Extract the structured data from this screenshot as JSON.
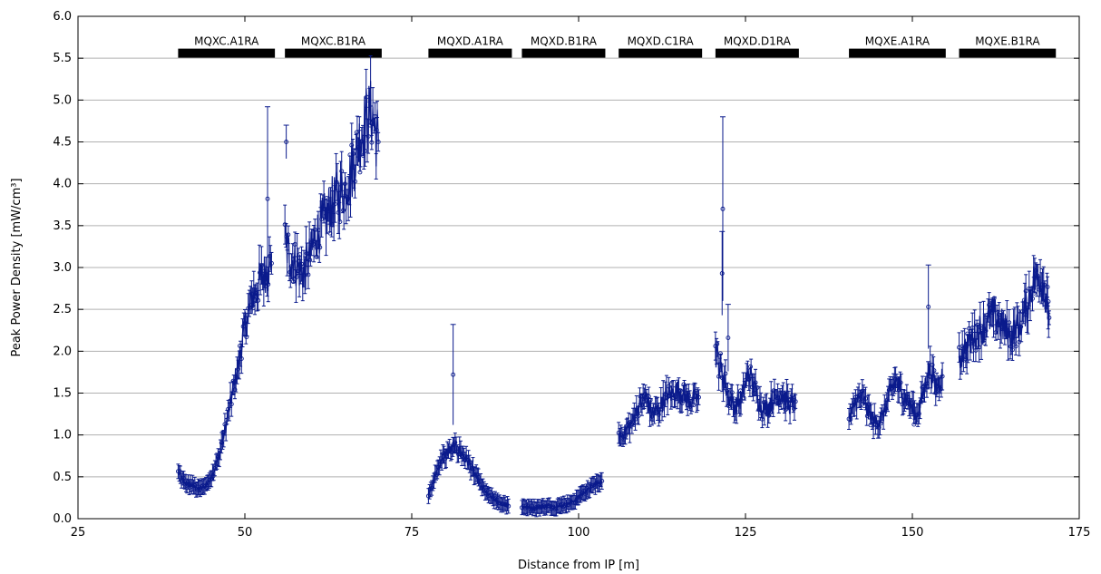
{
  "chart_data": {
    "type": "line",
    "xlabel": "Distance from IP [m]",
    "ylabel": "Peak Power Density [mW/cm³]",
    "xlim": [
      25,
      175
    ],
    "ylim": [
      0.0,
      6.0
    ],
    "x_ticks": [
      "25",
      "50",
      "75",
      "100",
      "125",
      "150",
      "175"
    ],
    "y_ticks": [
      "0.0",
      "0.5",
      "1.0",
      "1.5",
      "2.0",
      "2.5",
      "3.0",
      "3.5",
      "4.0",
      "4.5",
      "5.0",
      "5.5",
      "6.0"
    ],
    "grid": "horizontal",
    "colors": {
      "series": "#0a1a8c",
      "magnet_bar": "#000000"
    },
    "magnets": [
      {
        "label": "MQXC.A1RA",
        "start": 40.0,
        "end": 54.5
      },
      {
        "label": "MQXC.B1RA",
        "start": 56.0,
        "end": 70.5
      },
      {
        "label": "MQXD.A1RA",
        "start": 77.5,
        "end": 90.0
      },
      {
        "label": "MQXD.B1RA",
        "start": 91.5,
        "end": 104.0
      },
      {
        "label": "MQXD.C1RA",
        "start": 106.0,
        "end": 118.5
      },
      {
        "label": "MQXD.D1RA",
        "start": 120.5,
        "end": 133.0
      },
      {
        "label": "MQXE.A1RA",
        "start": 140.5,
        "end": 155.0
      },
      {
        "label": "MQXE.B1RA",
        "start": 157.0,
        "end": 171.5
      }
    ],
    "series": [
      {
        "segments": [
          {
            "x": [
              40.0,
              41.0,
              42.0,
              43.0,
              44.0,
              45.0,
              46.0,
              47.0,
              48.0,
              49.0,
              50.0,
              51.0,
              52.0,
              53.0,
              54.0
            ],
            "y": [
              0.55,
              0.42,
              0.4,
              0.35,
              0.38,
              0.5,
              0.72,
              1.05,
              1.45,
              1.85,
              2.3,
              2.6,
              2.8,
              2.95,
              3.05
            ]
          },
          {
            "x": [
              56.0,
              57.0,
              58.0,
              59.0,
              60.0,
              61.0,
              62.0,
              63.0,
              64.0,
              65.0,
              66.0,
              67.0,
              68.0,
              69.0,
              70.0
            ],
            "y": [
              3.3,
              3.1,
              3.0,
              2.95,
              3.2,
              3.45,
              3.6,
              3.75,
              3.85,
              3.95,
              4.15,
              4.45,
              4.75,
              4.85,
              4.5
            ]
          },
          {
            "x": [
              77.5,
              78.5,
              79.5,
              80.5,
              81.5,
              82.5,
              83.5,
              84.5,
              85.5,
              86.5,
              87.5,
              88.5,
              89.5
            ],
            "y": [
              0.28,
              0.5,
              0.72,
              0.8,
              0.85,
              0.78,
              0.68,
              0.52,
              0.38,
              0.28,
              0.22,
              0.18,
              0.15
            ]
          },
          {
            "x": [
              91.5,
              92.5,
              93.5,
              94.5,
              95.5,
              96.5,
              97.5,
              98.5,
              99.5,
              100.5,
              101.5,
              102.5,
              103.5
            ],
            "y": [
              0.15,
              0.13,
              0.13,
              0.14,
              0.15,
              0.14,
              0.16,
              0.18,
              0.22,
              0.3,
              0.35,
              0.42,
              0.45
            ]
          },
          {
            "x": [
              106.0,
              107.0,
              108.0,
              109.0,
              110.0,
              111.0,
              112.0,
              113.0,
              114.0,
              115.0,
              116.0,
              117.0,
              118.0
            ],
            "y": [
              0.95,
              1.05,
              1.15,
              1.35,
              1.45,
              1.25,
              1.3,
              1.45,
              1.5,
              1.55,
              1.45,
              1.4,
              1.45
            ]
          },
          {
            "x": [
              120.5,
              121.5,
              122.5,
              123.5,
              124.5,
              125.5,
              126.5,
              127.5,
              128.5,
              129.5,
              130.5,
              131.5,
              132.5
            ],
            "y": [
              2.0,
              1.75,
              1.45,
              1.35,
              1.45,
              1.75,
              1.55,
              1.3,
              1.35,
              1.45,
              1.5,
              1.35,
              1.4
            ]
          },
          {
            "x": [
              140.5,
              141.5,
              142.5,
              143.5,
              144.5,
              145.5,
              146.5,
              147.5,
              148.5,
              149.5,
              150.5,
              151.5,
              152.5,
              153.5,
              154.5
            ],
            "y": [
              1.15,
              1.4,
              1.45,
              1.25,
              1.15,
              1.2,
              1.45,
              1.65,
              1.5,
              1.4,
              1.2,
              1.45,
              1.8,
              1.6,
              1.7
            ]
          },
          {
            "x": [
              157.0,
              158.0,
              159.0,
              160.0,
              161.0,
              162.0,
              163.0,
              164.0,
              165.0,
              166.0,
              167.0,
              168.0,
              169.0,
              170.0,
              170.5
            ],
            "y": [
              1.9,
              2.05,
              2.15,
              2.25,
              2.3,
              2.45,
              2.35,
              2.25,
              2.2,
              2.3,
              2.5,
              2.8,
              2.9,
              2.7,
              2.4
            ]
          }
        ]
      }
    ],
    "spikes": [
      {
        "x": 53.4,
        "y": 3.82,
        "err": 1.1
      },
      {
        "x": 56.2,
        "y": 4.5,
        "err": 0.2
      },
      {
        "x": 81.2,
        "y": 1.72,
        "err": 0.6
      },
      {
        "x": 121.6,
        "y": 3.7,
        "err": 1.1
      },
      {
        "x": 121.5,
        "y": 2.93,
        "err": 0.5
      },
      {
        "x": 122.4,
        "y": 2.16,
        "err": 0.4
      },
      {
        "x": 152.4,
        "y": 2.53,
        "err": 0.5
      }
    ]
  }
}
